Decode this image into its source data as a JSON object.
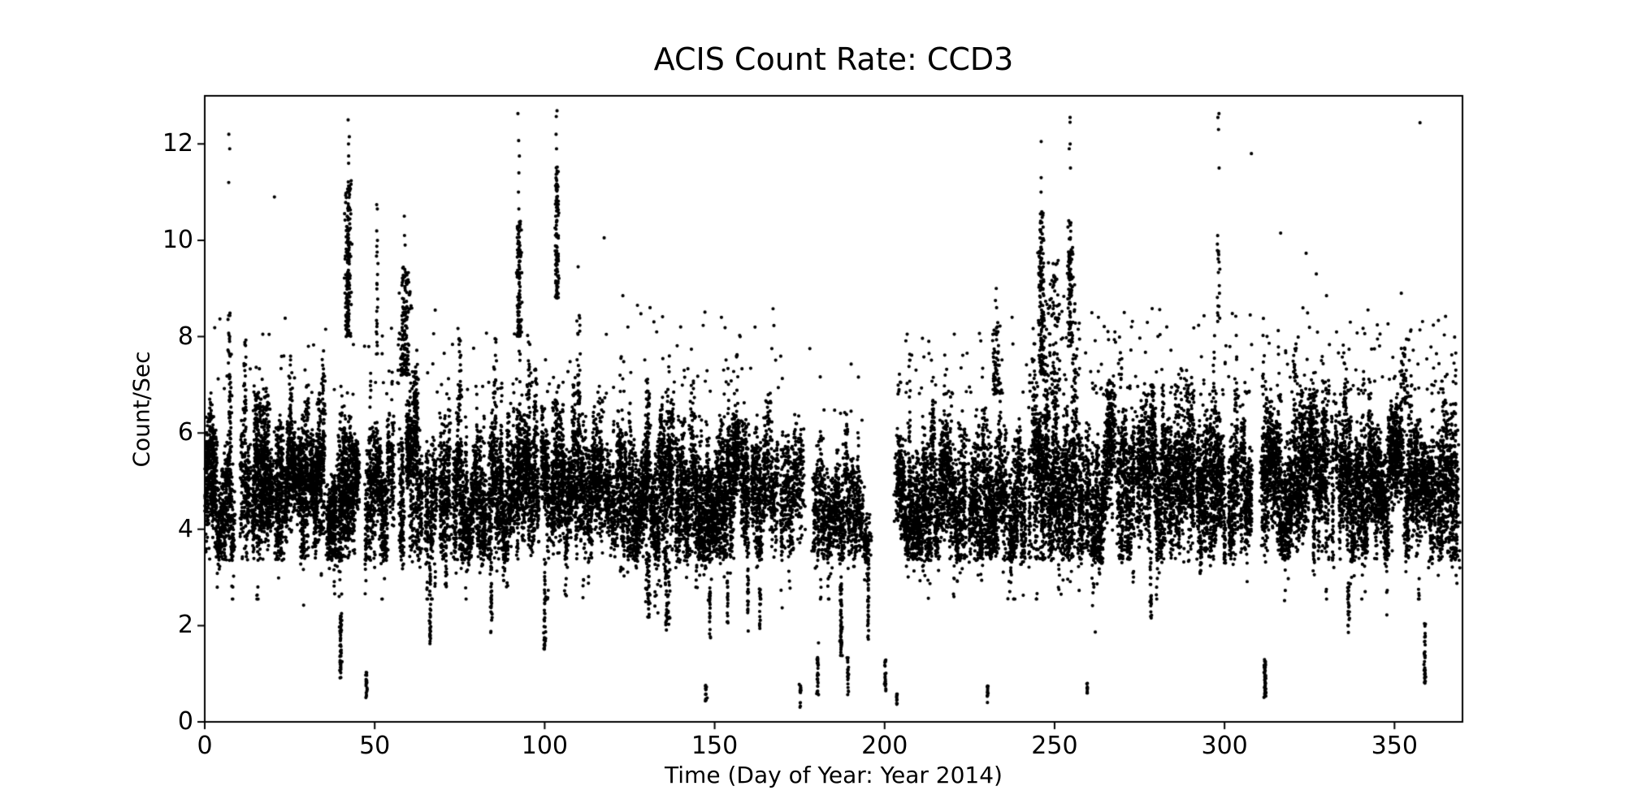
{
  "figure": {
    "background": "#ffffff",
    "frame_color": "#000000",
    "text_color": "#000000"
  },
  "chart_data": {
    "type": "scatter",
    "title": "ACIS Count Rate: CCD3",
    "xlabel": "Time (Day of Year: Year 2014)",
    "ylabel": "Count/Sec",
    "xlim": [
      0,
      370
    ],
    "ylim": [
      0,
      13
    ],
    "xticks": [
      0,
      50,
      100,
      150,
      200,
      250,
      300,
      350
    ],
    "yticks": [
      0,
      2,
      4,
      6,
      8,
      10,
      12
    ],
    "grid": false,
    "legend": null,
    "marker": {
      "color": "#000000",
      "radius_px": 2.1
    },
    "seed": 42,
    "description": "Dense black scatter of ACIS CCD3 count rates vs day of year 2014. Main quiescent band ~3.4-7 cts/s all year, columnar per-observation streaks, flaring spikes to ~12.6, occasional low-rate dropouts to ~0.3, and a data gap near days 195-203.",
    "band_segments": [
      {
        "x0": 0.3,
        "x1": 2.0,
        "density": 130,
        "mean": 4.9,
        "half": 1.3
      },
      {
        "x0": 2.0,
        "x1": 8.4,
        "density": 95,
        "mean": 4.8,
        "half": 1.25
      },
      {
        "x0": 10.6,
        "x1": 12.8,
        "density": 70,
        "mean": 4.9,
        "half": 1.3
      },
      {
        "x0": 14.0,
        "x1": 44.7,
        "density": 135,
        "mean": 4.85,
        "half": 1.3
      },
      {
        "x0": 47.2,
        "x1": 55.6,
        "density": 95,
        "mean": 4.8,
        "half": 1.25
      },
      {
        "x0": 57.4,
        "x1": 62.0,
        "density": 125,
        "mean": 5.2,
        "half": 1.5
      },
      {
        "x0": 62.0,
        "x1": 92.0,
        "density": 100,
        "mean": 4.8,
        "half": 1.3
      },
      {
        "x0": 92.0,
        "x1": 95.2,
        "density": 110,
        "mean": 5.0,
        "half": 1.4
      },
      {
        "x0": 95.2,
        "x1": 130.0,
        "density": 105,
        "mean": 4.8,
        "half": 1.3
      },
      {
        "x0": 130.0,
        "x1": 165.0,
        "density": 112,
        "mean": 4.75,
        "half": 1.3
      },
      {
        "x0": 165.0,
        "x1": 176.3,
        "density": 70,
        "mean": 4.6,
        "half": 1.15
      },
      {
        "x0": 179.0,
        "x1": 194.8,
        "density": 68,
        "mean": 4.55,
        "half": 1.1
      },
      {
        "x0": 203.5,
        "x1": 243.5,
        "density": 100,
        "mean": 4.8,
        "half": 1.3
      },
      {
        "x0": 243.5,
        "x1": 258.0,
        "density": 120,
        "mean": 5.3,
        "half": 1.6
      },
      {
        "x0": 259.3,
        "x1": 308.5,
        "density": 105,
        "mean": 4.9,
        "half": 1.35
      },
      {
        "x0": 311.0,
        "x1": 356.5,
        "density": 110,
        "mean": 4.95,
        "half": 1.4
      },
      {
        "x0": 356.5,
        "x1": 368.6,
        "density": 100,
        "mean": 4.9,
        "half": 1.35
      }
    ],
    "spike_columns": [
      {
        "day": 7.3,
        "width": 0.5,
        "y0": 6.2,
        "y1": 8.5,
        "n": 40,
        "iso": [
          11.2,
          11.9,
          12.2
        ]
      },
      {
        "day": 11.8,
        "width": 0.4,
        "y0": 6.3,
        "y1": 8.3,
        "n": 18,
        "iso": []
      },
      {
        "day": 42.2,
        "width": 0.9,
        "y0": 8.0,
        "y1": 11.3,
        "n": 170,
        "iso": [
          11.6,
          11.75,
          12.0,
          12.15,
          12.5
        ]
      },
      {
        "day": 50.7,
        "width": 0.3,
        "y0": 7.6,
        "y1": 10.2,
        "n": 22,
        "iso": [
          10.65,
          10.74
        ]
      },
      {
        "day": 58.8,
        "width": 1.6,
        "y0": 7.2,
        "y1": 9.5,
        "n": 140,
        "iso": [
          9.9,
          10.1,
          10.5
        ]
      },
      {
        "day": 75.0,
        "width": 0.6,
        "y0": 6.6,
        "y1": 8.1,
        "n": 25,
        "iso": []
      },
      {
        "day": 85.5,
        "width": 0.5,
        "y0": 6.5,
        "y1": 8.0,
        "n": 20,
        "iso": []
      },
      {
        "day": 92.5,
        "width": 0.7,
        "y0": 8.0,
        "y1": 10.4,
        "n": 130,
        "iso": [
          10.65,
          11.0,
          11.4,
          11.75,
          12.07,
          12.63
        ]
      },
      {
        "day": 103.6,
        "width": 0.6,
        "y0": 8.8,
        "y1": 11.6,
        "n": 120,
        "iso": [
          11.9,
          12.2,
          12.57,
          12.69
        ]
      },
      {
        "day": 110.0,
        "width": 0.5,
        "y0": 6.6,
        "y1": 8.5,
        "n": 30,
        "iso": [
          9.45
        ]
      },
      {
        "day": 232.8,
        "width": 1.4,
        "y0": 6.8,
        "y1": 8.3,
        "n": 55,
        "iso": [
          8.6,
          8.75,
          9.0
        ]
      },
      {
        "day": 246.2,
        "width": 1.0,
        "y0": 7.2,
        "y1": 10.6,
        "n": 160,
        "iso": [
          11.0,
          11.3,
          12.05
        ]
      },
      {
        "day": 250.0,
        "width": 3.0,
        "y0": 6.8,
        "y1": 9.6,
        "n": 90,
        "iso": []
      },
      {
        "day": 254.6,
        "width": 0.8,
        "y0": 7.8,
        "y1": 10.5,
        "n": 110,
        "iso": [
          11.5,
          11.9,
          12.0,
          12.45,
          12.55
        ]
      },
      {
        "day": 298.2,
        "width": 0.5,
        "y0": 8.3,
        "y1": 10.3,
        "n": 18,
        "iso": [
          11.5,
          12.3,
          12.55,
          12.63
        ]
      },
      {
        "day": 352.8,
        "width": 1.2,
        "y0": 6.6,
        "y1": 7.8,
        "n": 45,
        "iso": []
      }
    ],
    "dip_columns": [
      {
        "day": 40.0,
        "width": 0.3,
        "y0": 0.9,
        "y1": 2.25,
        "n": 60
      },
      {
        "day": 47.6,
        "width": 0.22,
        "y0": 0.5,
        "y1": 1.05,
        "n": 22
      },
      {
        "day": 66.3,
        "width": 0.25,
        "y0": 1.6,
        "y1": 3.3,
        "n": 40
      },
      {
        "day": 71.0,
        "width": 0.25,
        "y0": 2.8,
        "y1": 3.5,
        "n": 15
      },
      {
        "day": 84.3,
        "width": 0.25,
        "y0": 1.75,
        "y1": 3.9,
        "n": 35
      },
      {
        "day": 100.0,
        "width": 0.25,
        "y0": 1.5,
        "y1": 3.4,
        "n": 40
      },
      {
        "day": 130.5,
        "width": 0.6,
        "y0": 2.15,
        "y1": 3.5,
        "n": 45
      },
      {
        "day": 136.0,
        "width": 0.8,
        "y0": 1.9,
        "y1": 3.4,
        "n": 50
      },
      {
        "day": 147.4,
        "width": 0.25,
        "y0": 0.42,
        "y1": 0.8,
        "n": 16
      },
      {
        "day": 148.6,
        "width": 0.2,
        "y0": 1.7,
        "y1": 2.9,
        "n": 22
      },
      {
        "day": 153.8,
        "width": 0.2,
        "y0": 2.0,
        "y1": 3.1,
        "n": 20
      },
      {
        "day": 159.8,
        "width": 0.2,
        "y0": 1.85,
        "y1": 3.2,
        "n": 22
      },
      {
        "day": 163.3,
        "width": 0.2,
        "y0": 1.9,
        "y1": 2.85,
        "n": 18
      },
      {
        "day": 175.2,
        "width": 0.22,
        "y0": 0.3,
        "y1": 0.78,
        "n": 15
      },
      {
        "day": 180.3,
        "width": 0.25,
        "y0": 0.55,
        "y1": 1.45,
        "n": 28
      },
      {
        "day": 187.2,
        "width": 0.3,
        "y0": 1.35,
        "y1": 2.9,
        "n": 65
      },
      {
        "day": 189.2,
        "width": 0.22,
        "y0": 0.55,
        "y1": 1.35,
        "n": 25
      },
      {
        "day": 195.2,
        "width": 0.25,
        "y0": 1.7,
        "y1": 3.45,
        "n": 40
      },
      {
        "day": 200.2,
        "width": 0.22,
        "y0": 0.6,
        "y1": 1.3,
        "n": 22
      },
      {
        "day": 203.6,
        "width": 0.18,
        "y0": 0.35,
        "y1": 0.62,
        "n": 12
      },
      {
        "day": 230.3,
        "width": 0.22,
        "y0": 0.4,
        "y1": 0.75,
        "n": 16
      },
      {
        "day": 259.6,
        "width": 0.18,
        "y0": 0.58,
        "y1": 0.88,
        "n": 10
      },
      {
        "day": 278.3,
        "width": 0.25,
        "y0": 2.15,
        "y1": 3.4,
        "n": 26
      },
      {
        "day": 293.0,
        "width": 0.25,
        "y0": 2.95,
        "y1": 3.9,
        "n": 18
      },
      {
        "day": 311.9,
        "width": 0.3,
        "y0": 0.45,
        "y1": 1.3,
        "n": 50
      },
      {
        "day": 336.5,
        "width": 0.22,
        "y0": 1.85,
        "y1": 2.9,
        "n": 26
      },
      {
        "day": 358.9,
        "width": 0.25,
        "y0": 0.8,
        "y1": 2.05,
        "n": 36
      }
    ],
    "high_scatter": [
      {
        "x0": 2,
        "x1": 44,
        "n": 30,
        "y0": 6.8,
        "y1": 8.4
      },
      {
        "x0": 47,
        "x1": 92,
        "n": 40,
        "y0": 6.8,
        "y1": 8.3
      },
      {
        "x0": 95,
        "x1": 170,
        "n": 60,
        "y0": 6.8,
        "y1": 8.7
      },
      {
        "x0": 170,
        "x1": 195,
        "n": 8,
        "y0": 6.2,
        "y1": 7.8
      },
      {
        "x0": 203,
        "x1": 244,
        "n": 45,
        "y0": 6.8,
        "y1": 8.2
      },
      {
        "x0": 259,
        "x1": 369,
        "n": 210,
        "y0": 6.8,
        "y1": 8.6
      }
    ],
    "isolated_points": [
      [
        20.5,
        10.9
      ],
      [
        67.8,
        8.55
      ],
      [
        117.5,
        10.05
      ],
      [
        123,
        8.85
      ],
      [
        131,
        8.6
      ],
      [
        140,
        8.2
      ],
      [
        152,
        8.4
      ],
      [
        157.5,
        8.0
      ],
      [
        178,
        7.75
      ],
      [
        180.55,
        1.64
      ],
      [
        213,
        7.9
      ],
      [
        220.5,
        8.05
      ],
      [
        237.5,
        8.4
      ],
      [
        262.9,
        8.4
      ],
      [
        270.5,
        8.5
      ],
      [
        283,
        8.2
      ],
      [
        298.5,
        8.9
      ],
      [
        307.9,
        11.8
      ],
      [
        316.5,
        10.15
      ],
      [
        324,
        9.73
      ],
      [
        327,
        9.3
      ],
      [
        330,
        8.85
      ],
      [
        337,
        8.3
      ],
      [
        345,
        7.95
      ],
      [
        352,
        8.9
      ],
      [
        357.5,
        12.44
      ]
    ]
  }
}
